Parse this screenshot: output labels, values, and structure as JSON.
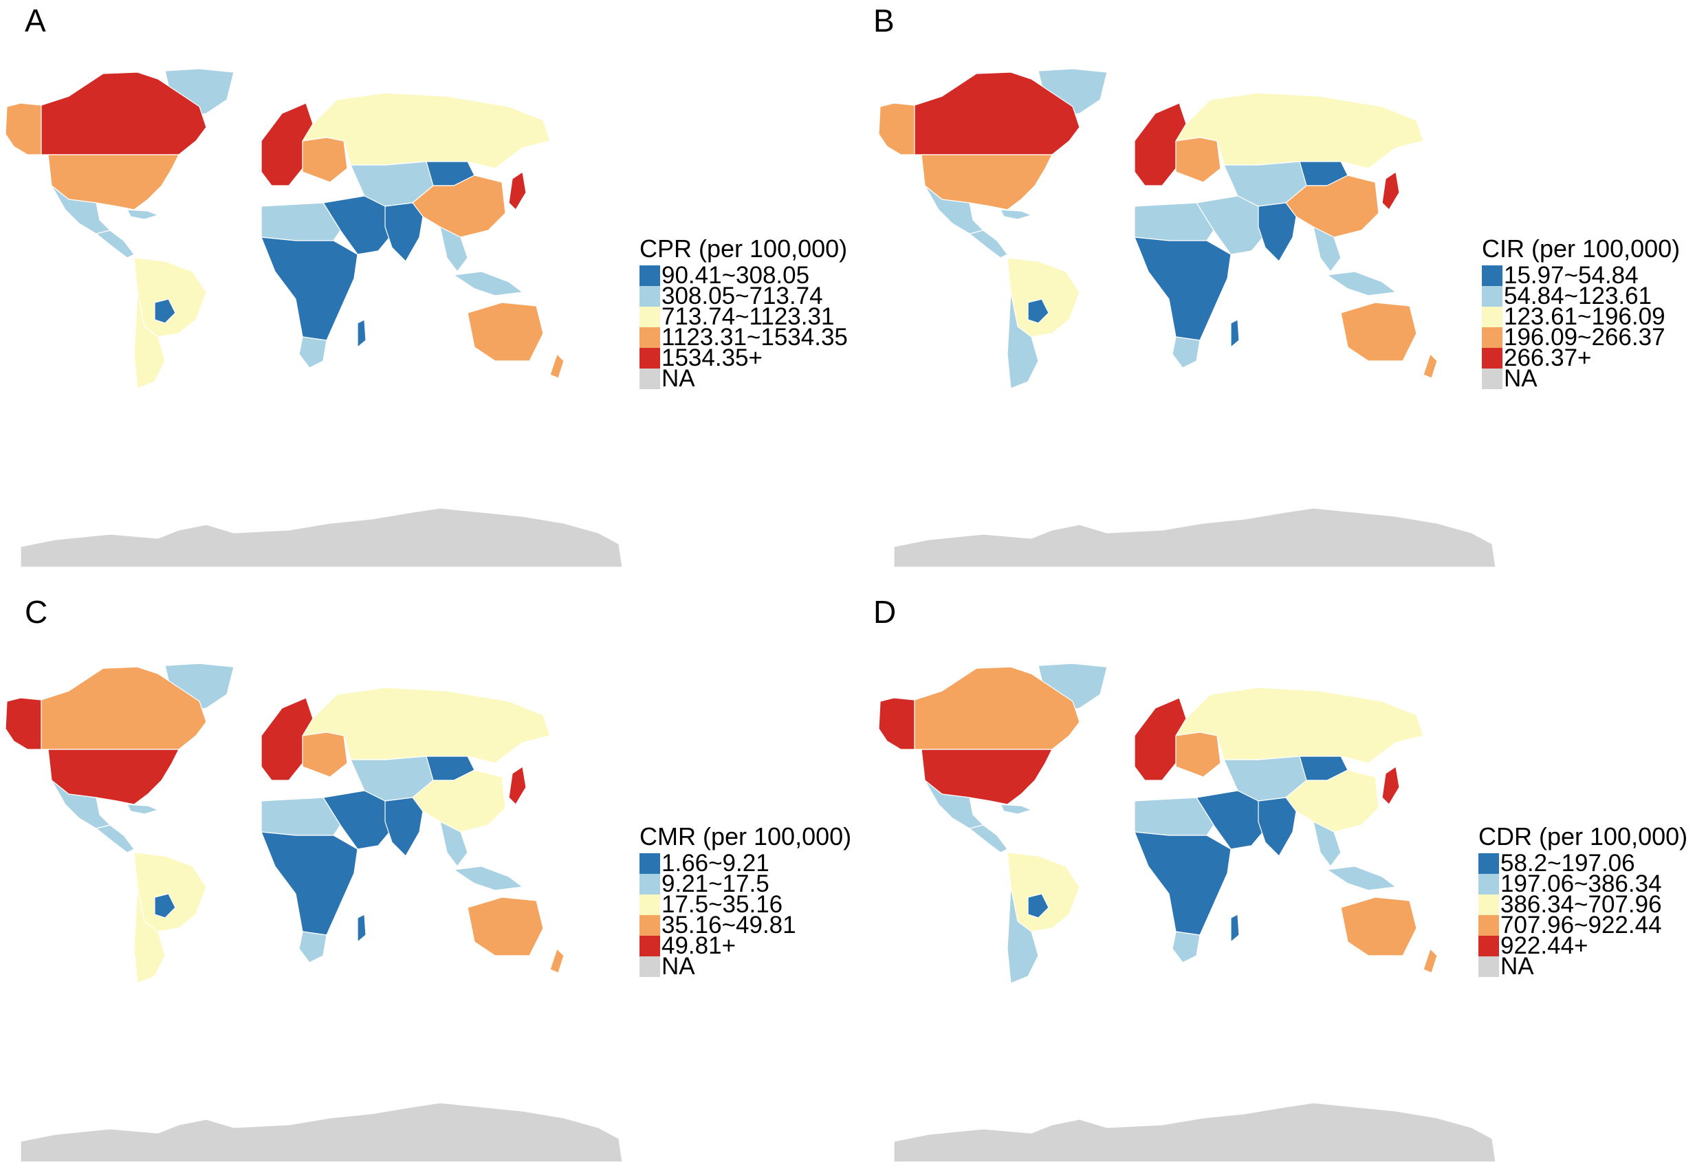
{
  "colors": {
    "class1": "#2b74b2",
    "class2": "#a8d2e4",
    "class3": "#fbf8c0",
    "class4": "#f4a45e",
    "class5": "#d42a26",
    "na": "#d3d3d3"
  },
  "panels": [
    {
      "letter": "A",
      "legend_title": "CPR (per 100,000)",
      "legend_items": [
        {
          "label": "90.41~308.05",
          "color": "#2b74b2"
        },
        {
          "label": "308.05~713.74",
          "color": "#a8d2e4"
        },
        {
          "label": "713.74~1123.31",
          "color": "#fbf8c0"
        },
        {
          "label": "1123.31~1534.35",
          "color": "#f4a45e"
        },
        {
          "label": "1534.35+",
          "color": "#d42a26"
        },
        {
          "label": "NA",
          "color": "#d3d3d3"
        }
      ],
      "regions": {
        "alaska": 4,
        "canada": 5,
        "greenland": 2,
        "usa": 4,
        "mexico": 2,
        "central_america": 2,
        "caribbean": 2,
        "south_america": 3,
        "bolivia": 1,
        "southern_cone": 3,
        "western_europe": 5,
        "eastern_europe": 4,
        "russia": 3,
        "central_asia": 2,
        "mongolia": 1,
        "china": 4,
        "japan": 5,
        "middle_east": 1,
        "north_africa": 2,
        "sub_saharan_africa": 1,
        "southern_africa": 2,
        "madagascar": 1,
        "india": 1,
        "southeast_asia": 2,
        "indonesia": 2,
        "australia": 4,
        "new_zealand": 4,
        "antarctica": 0
      }
    },
    {
      "letter": "B",
      "legend_title": "CIR (per 100,000)",
      "legend_items": [
        {
          "label": "15.97~54.84",
          "color": "#2b74b2"
        },
        {
          "label": "54.84~123.61",
          "color": "#a8d2e4"
        },
        {
          "label": "123.61~196.09",
          "color": "#fbf8c0"
        },
        {
          "label": "196.09~266.37",
          "color": "#f4a45e"
        },
        {
          "label": "266.37+",
          "color": "#d42a26"
        },
        {
          "label": "NA",
          "color": "#d3d3d3"
        }
      ],
      "regions": {
        "alaska": 4,
        "canada": 5,
        "greenland": 2,
        "usa": 4,
        "mexico": 2,
        "central_america": 2,
        "caribbean": 2,
        "south_america": 3,
        "bolivia": 1,
        "southern_cone": 2,
        "western_europe": 5,
        "eastern_europe": 4,
        "russia": 3,
        "central_asia": 2,
        "mongolia": 1,
        "china": 4,
        "japan": 5,
        "middle_east": 2,
        "north_africa": 2,
        "sub_saharan_africa": 1,
        "southern_africa": 2,
        "madagascar": 1,
        "india": 1,
        "southeast_asia": 2,
        "indonesia": 2,
        "australia": 4,
        "new_zealand": 4,
        "antarctica": 0
      }
    },
    {
      "letter": "C",
      "legend_title": "CMR (per 100,000)",
      "legend_items": [
        {
          "label": "1.66~9.21",
          "color": "#2b74b2"
        },
        {
          "label": "9.21~17.5",
          "color": "#a8d2e4"
        },
        {
          "label": "17.5~35.16",
          "color": "#fbf8c0"
        },
        {
          "label": "35.16~49.81",
          "color": "#f4a45e"
        },
        {
          "label": "49.81+",
          "color": "#d42a26"
        },
        {
          "label": "NA",
          "color": "#d3d3d3"
        }
      ],
      "regions": {
        "alaska": 5,
        "canada": 4,
        "greenland": 2,
        "usa": 5,
        "mexico": 2,
        "central_america": 2,
        "caribbean": 2,
        "south_america": 3,
        "bolivia": 1,
        "southern_cone": 3,
        "western_europe": 5,
        "eastern_europe": 4,
        "russia": 3,
        "central_asia": 2,
        "mongolia": 1,
        "china": 3,
        "japan": 5,
        "middle_east": 1,
        "north_africa": 2,
        "sub_saharan_africa": 1,
        "southern_africa": 2,
        "madagascar": 1,
        "india": 1,
        "southeast_asia": 2,
        "indonesia": 2,
        "australia": 4,
        "new_zealand": 4,
        "antarctica": 0
      }
    },
    {
      "letter": "D",
      "legend_title": "CDR (per 100,000)",
      "legend_items": [
        {
          "label": "58.2~197.06",
          "color": "#2b74b2"
        },
        {
          "label": "197.06~386.34",
          "color": "#a8d2e4"
        },
        {
          "label": "386.34~707.96",
          "color": "#fbf8c0"
        },
        {
          "label": "707.96~922.44",
          "color": "#f4a45e"
        },
        {
          "label": "922.44+",
          "color": "#d42a26"
        },
        {
          "label": "NA",
          "color": "#d3d3d3"
        }
      ],
      "regions": {
        "alaska": 5,
        "canada": 4,
        "greenland": 2,
        "usa": 5,
        "mexico": 2,
        "central_america": 2,
        "caribbean": 2,
        "south_america": 3,
        "bolivia": 1,
        "southern_cone": 2,
        "western_europe": 5,
        "eastern_europe": 4,
        "russia": 3,
        "central_asia": 2,
        "mongolia": 1,
        "china": 3,
        "japan": 5,
        "middle_east": 1,
        "north_africa": 2,
        "sub_saharan_africa": 1,
        "southern_africa": 2,
        "madagascar": 1,
        "india": 1,
        "southeast_asia": 2,
        "indonesia": 2,
        "australia": 4,
        "new_zealand": 4,
        "antarctica": 0
      }
    }
  ]
}
